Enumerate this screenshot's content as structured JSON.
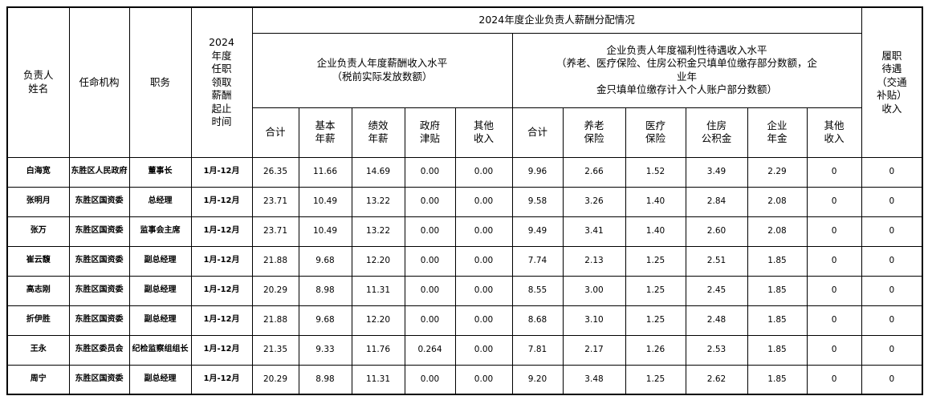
{
  "table": {
    "header": {
      "col_name": "负责人\n姓名",
      "col_agency": "任命机构",
      "col_position": "职务",
      "col_period": "2024\n年度\n任职\n领取\n薪酬\n起止\n时间",
      "group_title": "2024年度企业负责人薪酬分配情况",
      "salary_group": "企业负责人年度薪酬收入水平\n（税前实际发放数额）",
      "welfare_group": "企业负责人年度福利性待遇收入水平\n（养老、医疗保险、住房公积金只填单位缴存部分数额，企\n业年\n金只填单位缴存计入个人账户部分数额）",
      "col_duty_income": "履职\n待遇\n（交通\n补贴）\n收入",
      "salary_cols": [
        "合计",
        "基本\n年薪",
        "绩效\n年薪",
        "政府\n津贴",
        "其他\n收入"
      ],
      "welfare_cols": [
        "合计",
        "养老\n保险",
        "医疗\n保险",
        "住房\n公积金",
        "企业\n年金",
        "其他\n收入"
      ]
    },
    "rows": [
      {
        "name": "白海宽",
        "agency": "东胜区人民政府",
        "position": "董事长",
        "period": "1月-12月",
        "salary": [
          "26.35",
          "11.66",
          "14.69",
          "0.00",
          "0.00"
        ],
        "welfare": [
          "9.96",
          "2.66",
          "1.52",
          "3.49",
          "2.29",
          "0"
        ],
        "duty_income": "0"
      },
      {
        "name": "张明月",
        "agency": "东胜区国资委",
        "position": "总经理",
        "period": "1月-12月",
        "salary": [
          "23.71",
          "10.49",
          "13.22",
          "0.00",
          "0.00"
        ],
        "welfare": [
          "9.58",
          "3.26",
          "1.40",
          "2.84",
          "2.08",
          "0"
        ],
        "duty_income": "0"
      },
      {
        "name": "张万",
        "agency": "东胜区国资委",
        "position": "监事会主席",
        "period": "1月-12月",
        "salary": [
          "23.71",
          "10.49",
          "13.22",
          "0.00",
          "0.00"
        ],
        "welfare": [
          "9.49",
          "3.41",
          "1.40",
          "2.60",
          "2.08",
          "0"
        ],
        "duty_income": "0"
      },
      {
        "name": "崔云馥",
        "agency": "东胜区国资委",
        "position": "副总经理",
        "period": "1月-12月",
        "salary": [
          "21.88",
          "9.68",
          "12.20",
          "0.00",
          "0.00"
        ],
        "welfare": [
          "7.74",
          "2.13",
          "1.25",
          "2.51",
          "1.85",
          "0"
        ],
        "duty_income": "0"
      },
      {
        "name": "高志刚",
        "agency": "东胜区国资委",
        "position": "副总经理",
        "period": "1月-12月",
        "salary": [
          "20.29",
          "8.98",
          "11.31",
          "0.00",
          "0.00"
        ],
        "welfare": [
          "8.55",
          "3.00",
          "1.25",
          "2.45",
          "1.85",
          "0"
        ],
        "duty_income": "0"
      },
      {
        "name": "折伊胜",
        "agency": "东胜区国资委",
        "position": "副总经理",
        "period": "1月-12月",
        "salary": [
          "21.88",
          "9.68",
          "12.20",
          "0.00",
          "0.00"
        ],
        "welfare": [
          "8.68",
          "3.10",
          "1.25",
          "2.48",
          "1.85",
          "0"
        ],
        "duty_income": "0"
      },
      {
        "name": "王永",
        "agency": "东胜区委员会",
        "position": "纪检监察组组长",
        "period": "1月-12月",
        "salary": [
          "21.35",
          "9.33",
          "11.76",
          "0.264",
          "0.00"
        ],
        "welfare": [
          "7.81",
          "2.17",
          "1.26",
          "2.53",
          "1.85",
          "0"
        ],
        "duty_income": "0"
      },
      {
        "name": "周宁",
        "agency": "东胜区国资委",
        "position": "副总经理",
        "period": "1月-12月",
        "salary": [
          "20.29",
          "8.98",
          "11.31",
          "0.00",
          "0.00"
        ],
        "welfare": [
          "9.20",
          "3.48",
          "1.25",
          "2.62",
          "1.85",
          "0"
        ],
        "duty_income": "0"
      }
    ]
  },
  "colors": {
    "border": "#000000",
    "background": "#ffffff",
    "text": "#000000"
  }
}
